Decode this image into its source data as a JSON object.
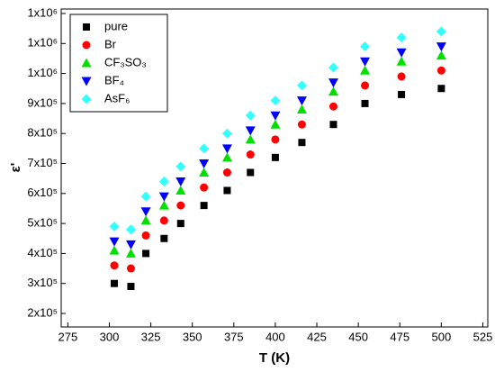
{
  "chart_data": {
    "type": "scatter",
    "xlabel": "T (K)",
    "ylabel": "ε'",
    "x": [
      303,
      313,
      322,
      333,
      343,
      357,
      371,
      385,
      400,
      416,
      435,
      454,
      476,
      500
    ],
    "series": [
      {
        "name": "pure",
        "color": "#000000",
        "marker": "square",
        "values": [
          300000,
          290000,
          400000,
          450000,
          500000,
          560000,
          610000,
          670000,
          720000,
          770000,
          830000,
          900000,
          930000,
          950000
        ]
      },
      {
        "name": "Br",
        "color": "#ff0000",
        "marker": "circle",
        "values": [
          360000,
          350000,
          460000,
          510000,
          560000,
          620000,
          670000,
          730000,
          780000,
          830000,
          890000,
          960000,
          990000,
          1010000
        ]
      },
      {
        "name": "CF₃SO₃",
        "color": "#00e000",
        "marker": "triangle-up",
        "values": [
          410000,
          400000,
          510000,
          560000,
          610000,
          670000,
          720000,
          780000,
          830000,
          880000,
          940000,
          1010000,
          1040000,
          1060000
        ]
      },
      {
        "name": "BF₄",
        "color": "#0000ff",
        "marker": "triangle-down",
        "values": [
          440000,
          430000,
          540000,
          590000,
          640000,
          700000,
          750000,
          810000,
          860000,
          910000,
          970000,
          1040000,
          1070000,
          1090000
        ]
      },
      {
        "name": "AsF₆",
        "color": "#33ffff",
        "marker": "diamond",
        "values": [
          490000,
          480000,
          590000,
          640000,
          690000,
          750000,
          800000,
          860000,
          910000,
          960000,
          1020000,
          1090000,
          1120000,
          1140000
        ]
      }
    ],
    "xlim": [
      271,
      528
    ],
    "xticks": [
      275,
      300,
      325,
      350,
      375,
      400,
      425,
      450,
      475,
      500,
      525
    ],
    "ylim": [
      155000,
      1215000
    ],
    "yticks": [
      {
        "value": 200000,
        "label": "2x10⁵"
      },
      {
        "value": 300000,
        "label": "3x10⁵"
      },
      {
        "value": 400000,
        "label": "4x10⁵"
      },
      {
        "value": 500000,
        "label": "5x10⁵"
      },
      {
        "value": 600000,
        "label": "6x10⁵"
      },
      {
        "value": 700000,
        "label": "7x10⁵"
      },
      {
        "value": 800000,
        "label": "8x10⁵"
      },
      {
        "value": 900000,
        "label": "9x10⁵"
      },
      {
        "value": 1000000,
        "label": "1x10⁶"
      },
      {
        "value": 1100000,
        "label": "1x10⁶"
      },
      {
        "value": 1200000,
        "label": "1x10⁶"
      }
    ],
    "legend": "upper left"
  }
}
